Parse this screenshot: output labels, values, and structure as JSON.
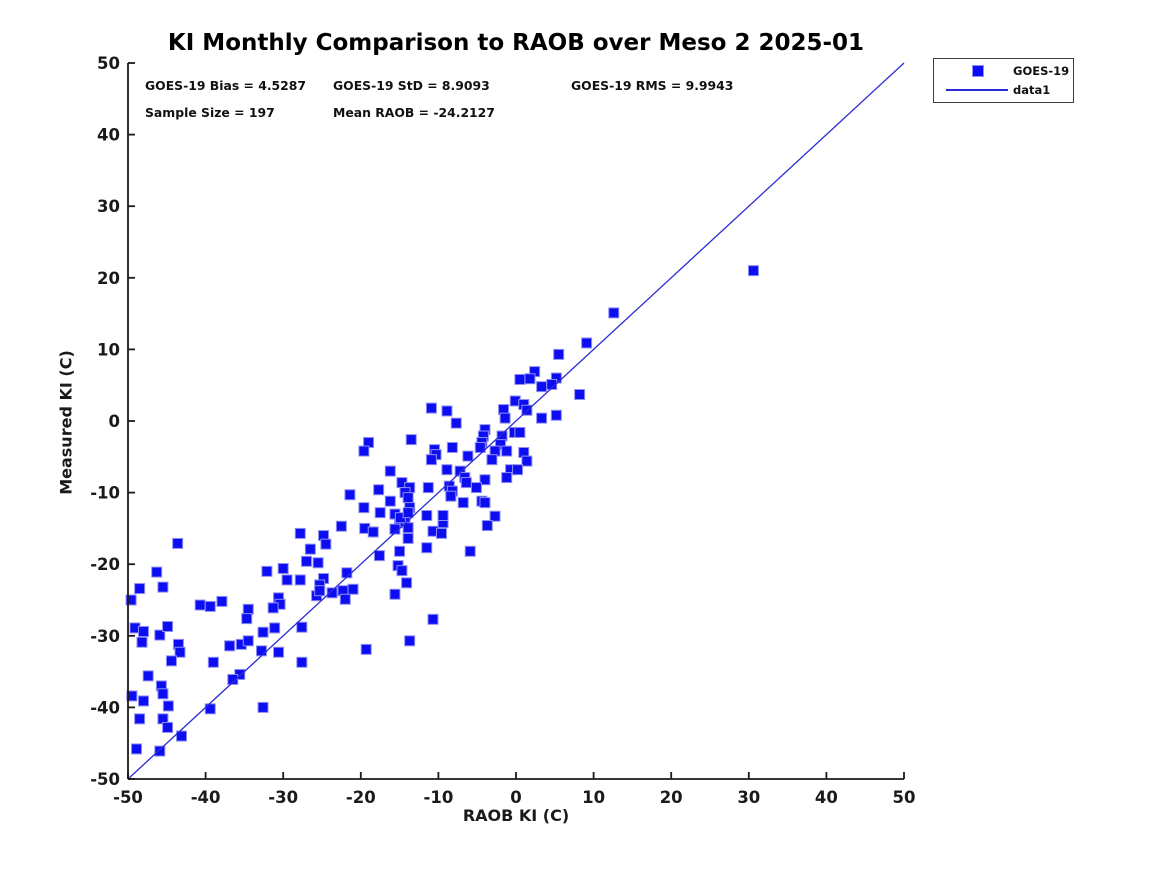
{
  "title": "KI Monthly Comparison to RAOB over Meso 2 2025-01",
  "stats": {
    "bias": "GOES-19 Bias = 4.5287",
    "std": "GOES-19 StD = 8.9093",
    "rms": "GOES-19 RMS = 9.9943",
    "sample_size": "Sample Size = 197",
    "mean_raob": "Mean RAOB = -24.2127"
  },
  "legend": {
    "items": [
      {
        "label": "GOES-19",
        "swatch": "square-marker"
      },
      {
        "label": "data1",
        "swatch": "line"
      }
    ]
  },
  "chart_data": {
    "type": "scatter",
    "title": "KI Monthly Comparison to RAOB over Meso 2 2025-01",
    "xlabel": "RAOB KI (C)",
    "ylabel": "Measured KI (C)",
    "xlim": [
      -50,
      50
    ],
    "ylim": [
      -50,
      50
    ],
    "xticks": [
      -50,
      -40,
      -30,
      -20,
      -10,
      0,
      10,
      20,
      30,
      40,
      50
    ],
    "yticks": [
      -50,
      -40,
      -30,
      -20,
      -10,
      0,
      10,
      20,
      30,
      40,
      50
    ],
    "grid": false,
    "legend_position": "outside-top-right",
    "marker_color": "#0D0DF2",
    "marker_edge_color": "#8f8ff6",
    "line_color": "#2B2BD5",
    "axis_color": "#1a1a1a",
    "series": [
      {
        "name": "GOES-19",
        "type": "scatter",
        "marker": "square",
        "points": [
          [
            -43.6,
            -17.1
          ],
          [
            -46.3,
            -21.1
          ],
          [
            -48.5,
            -23.4
          ],
          [
            -45.5,
            -23.2
          ],
          [
            -49.6,
            -25.0
          ],
          [
            -40.7,
            -25.7
          ],
          [
            -39.4,
            -25.9
          ],
          [
            -37.9,
            -25.2
          ],
          [
            -32.1,
            -21.0
          ],
          [
            -34.5,
            -26.3
          ],
          [
            -34.7,
            -27.6
          ],
          [
            -49.1,
            -28.9
          ],
          [
            -48.0,
            -29.4
          ],
          [
            -45.9,
            -29.9
          ],
          [
            -44.9,
            -28.7
          ],
          [
            -32.6,
            -29.5
          ],
          [
            -48.2,
            -30.9
          ],
          [
            -43.5,
            -31.2
          ],
          [
            -43.3,
            -32.3
          ],
          [
            -44.4,
            -33.5
          ],
          [
            -36.9,
            -31.4
          ],
          [
            -35.4,
            -31.2
          ],
          [
            -34.5,
            -30.7
          ],
          [
            -32.8,
            -32.1
          ],
          [
            -30.6,
            -32.3
          ],
          [
            -27.6,
            -33.7
          ],
          [
            -39.0,
            -33.7
          ],
          [
            -47.4,
            -35.6
          ],
          [
            -35.6,
            -35.4
          ],
          [
            -36.5,
            -36.1
          ],
          [
            -45.7,
            -37.0
          ],
          [
            -45.5,
            -38.1
          ],
          [
            -49.5,
            -38.4
          ],
          [
            -48.0,
            -39.1
          ],
          [
            -44.8,
            -39.8
          ],
          [
            -39.4,
            -40.2
          ],
          [
            -32.6,
            -40.0
          ],
          [
            -48.5,
            -41.6
          ],
          [
            -45.5,
            -41.6
          ],
          [
            -44.9,
            -42.8
          ],
          [
            -43.1,
            -44.0
          ],
          [
            -48.9,
            -45.8
          ],
          [
            -45.9,
            -46.1
          ],
          [
            -22.5,
            -14.7
          ],
          [
            -19.5,
            -15.0
          ],
          [
            -18.4,
            -15.5
          ],
          [
            -15.0,
            -14.2
          ],
          [
            -14.3,
            -14.0
          ],
          [
            -13.9,
            -14.9
          ],
          [
            -15.6,
            -15.1
          ],
          [
            -9.4,
            -14.2
          ],
          [
            -10.7,
            -15.4
          ],
          [
            -9.6,
            -15.7
          ],
          [
            -27.8,
            -15.7
          ],
          [
            -24.8,
            -16.0
          ],
          [
            -24.5,
            -17.2
          ],
          [
            -26.5,
            -17.9
          ],
          [
            -13.9,
            -16.4
          ],
          [
            -5.9,
            -18.2
          ],
          [
            -11.5,
            -17.7
          ],
          [
            -17.6,
            -18.8
          ],
          [
            -15.0,
            -18.2
          ],
          [
            -27.0,
            -19.6
          ],
          [
            -25.5,
            -19.8
          ],
          [
            -30.0,
            -20.6
          ],
          [
            -15.2,
            -20.2
          ],
          [
            -14.7,
            -20.9
          ],
          [
            -29.5,
            -22.2
          ],
          [
            -27.8,
            -22.2
          ],
          [
            -24.8,
            -22.0
          ],
          [
            -25.3,
            -22.9
          ],
          [
            -21.8,
            -21.2
          ],
          [
            -14.1,
            -22.6
          ],
          [
            -21.0,
            -23.5
          ],
          [
            -22.3,
            -23.7
          ],
          [
            -23.7,
            -24.0
          ],
          [
            -25.7,
            -24.4
          ],
          [
            -25.3,
            -23.7
          ],
          [
            -15.6,
            -24.2
          ],
          [
            -30.6,
            -24.7
          ],
          [
            -30.4,
            -25.6
          ],
          [
            -31.3,
            -26.1
          ],
          [
            -22.0,
            -24.9
          ],
          [
            -27.6,
            -28.8
          ],
          [
            -31.1,
            -28.9
          ],
          [
            -10.7,
            -27.7
          ],
          [
            -13.7,
            -30.7
          ],
          [
            -19.3,
            -31.9
          ],
          [
            -10.9,
            1.8
          ],
          [
            -8.9,
            1.4
          ],
          [
            -0.1,
            2.8
          ],
          [
            1.0,
            2.3
          ],
          [
            -1.6,
            1.6
          ],
          [
            1.4,
            1.5
          ],
          [
            -7.7,
            -0.3
          ],
          [
            3.3,
            0.4
          ],
          [
            5.2,
            0.8
          ],
          [
            -4.0,
            -1.2
          ],
          [
            -4.2,
            -2.1
          ],
          [
            -4.4,
            -3.0
          ],
          [
            -4.6,
            -3.7
          ],
          [
            -13.5,
            -2.6
          ],
          [
            -1.8,
            -2.1
          ],
          [
            -2.0,
            -3.3
          ],
          [
            -0.2,
            -1.6
          ],
          [
            0.5,
            -1.6
          ],
          [
            -19.0,
            -3.0
          ],
          [
            -19.6,
            -4.2
          ],
          [
            -10.5,
            -4.0
          ],
          [
            -10.3,
            -4.7
          ],
          [
            -10.9,
            -5.4
          ],
          [
            -8.2,
            -3.7
          ],
          [
            -2.7,
            -4.2
          ],
          [
            -1.2,
            -4.2
          ],
          [
            1.0,
            -4.4
          ],
          [
            1.4,
            -5.6
          ],
          [
            -6.2,
            -4.9
          ],
          [
            -3.1,
            -5.4
          ],
          [
            -0.7,
            -6.8
          ],
          [
            0.2,
            -6.8
          ],
          [
            -8.9,
            -6.8
          ],
          [
            -7.2,
            -7.0
          ],
          [
            -16.2,
            -7.0
          ],
          [
            -6.6,
            -7.9
          ],
          [
            -6.4,
            -8.6
          ],
          [
            -4.0,
            -8.2
          ],
          [
            -1.2,
            -7.9
          ],
          [
            -14.7,
            -8.6
          ],
          [
            -13.7,
            -9.3
          ],
          [
            -14.3,
            -10.0
          ],
          [
            -13.9,
            -10.7
          ],
          [
            -17.7,
            -9.6
          ],
          [
            -8.6,
            -9.1
          ],
          [
            -8.2,
            -9.8
          ],
          [
            -8.4,
            -10.5
          ],
          [
            -11.3,
            -9.3
          ],
          [
            -5.1,
            -9.3
          ],
          [
            -6.8,
            -11.4
          ],
          [
            -4.4,
            -11.2
          ],
          [
            -4.0,
            -11.4
          ],
          [
            -19.6,
            -12.1
          ],
          [
            -17.5,
            -12.8
          ],
          [
            -16.2,
            -11.2
          ],
          [
            -15.6,
            -13.0
          ],
          [
            -14.9,
            -13.5
          ],
          [
            -13.7,
            -12.1
          ],
          [
            -13.9,
            -12.8
          ],
          [
            -11.5,
            -13.2
          ],
          [
            -9.4,
            -13.2
          ],
          [
            -2.7,
            -13.3
          ],
          [
            -3.7,
            -14.6
          ],
          [
            -21.4,
            -10.3
          ],
          [
            12.6,
            15.1
          ],
          [
            9.1,
            10.9
          ],
          [
            5.5,
            9.3
          ],
          [
            2.4,
            6.9
          ],
          [
            0.5,
            5.8
          ],
          [
            1.8,
            5.9
          ],
          [
            5.2,
            6.0
          ],
          [
            4.6,
            5.1
          ],
          [
            3.3,
            4.8
          ],
          [
            8.2,
            3.7
          ],
          [
            -1.4,
            0.4
          ],
          [
            30.6,
            21.0
          ]
        ]
      },
      {
        "name": "data1",
        "type": "line",
        "points": [
          [
            -50,
            -50
          ],
          [
            50,
            50
          ]
        ]
      }
    ]
  }
}
